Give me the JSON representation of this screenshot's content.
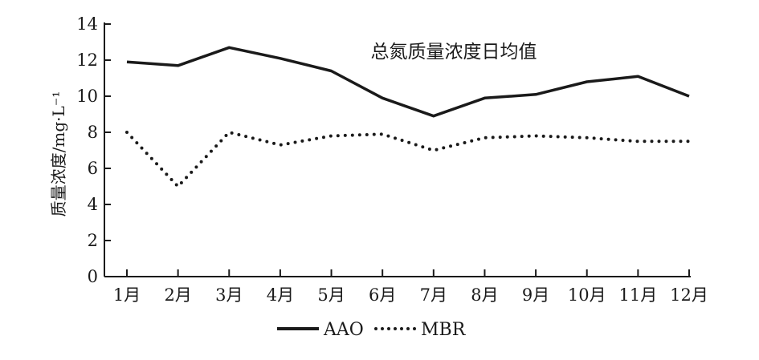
{
  "chart_data": {
    "type": "line",
    "title": "总氮质量浓度日均值",
    "xlabel": "",
    "ylabel": "质量浓度/mg·L⁻¹",
    "categories": [
      "1月",
      "2月",
      "3月",
      "4月",
      "5月",
      "6月",
      "7月",
      "8月",
      "9月",
      "10月",
      "11月",
      "12月"
    ],
    "ylim": [
      0,
      14
    ],
    "yticks": [
      "0",
      "2",
      "4",
      "6",
      "8",
      "10",
      "12",
      "14"
    ],
    "grid": false,
    "legend_position": "bottom",
    "series": [
      {
        "name": "AAO",
        "style": "solid",
        "color": "#1a1a1a",
        "values": [
          11.9,
          11.7,
          12.7,
          12.1,
          11.4,
          9.9,
          8.9,
          9.9,
          10.1,
          10.8,
          11.1,
          10.0
        ]
      },
      {
        "name": "MBR",
        "style": "dotted",
        "color": "#1a1a1a",
        "values": [
          8.0,
          5.0,
          8.0,
          7.3,
          7.8,
          7.9,
          7.0,
          7.7,
          7.8,
          7.7,
          7.5,
          7.5
        ]
      }
    ]
  }
}
